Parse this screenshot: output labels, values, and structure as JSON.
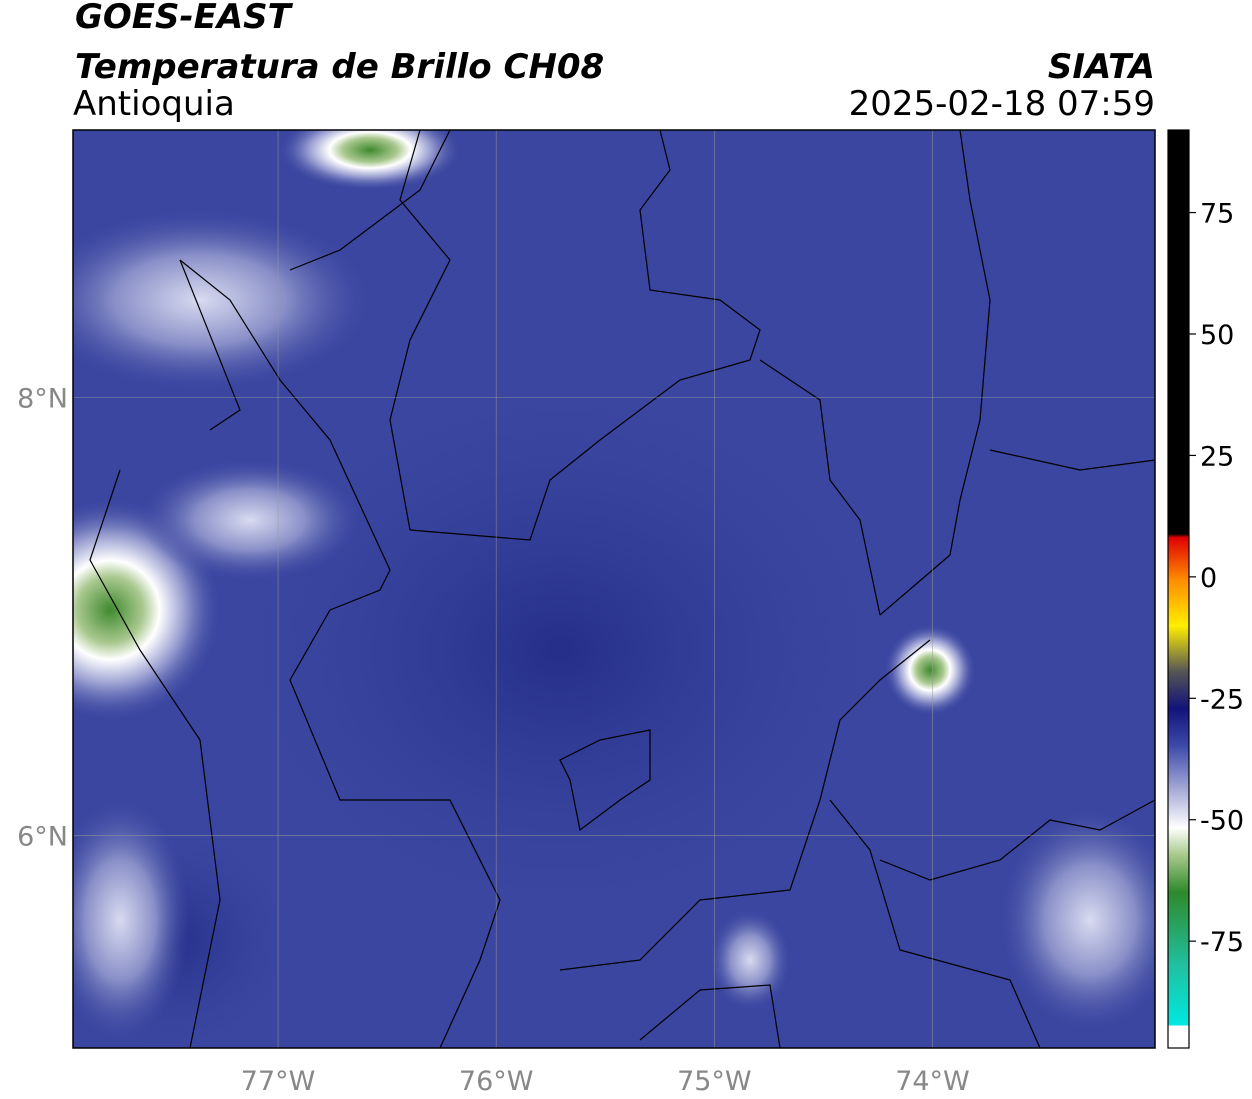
{
  "header": {
    "title": "GOES-EAST",
    "subtitle": "Temperatura de Brillo CH08",
    "region": "Antioquia",
    "source": "SIATA",
    "datetime": "2025-02-18 07:59"
  },
  "map": {
    "xlim": [
      -77.94,
      -72.98
    ],
    "ylim": [
      5.03,
      9.22
    ],
    "xticks": [
      {
        "value": -77,
        "label": "77°W"
      },
      {
        "value": -76,
        "label": "76°W"
      },
      {
        "value": -75,
        "label": "75°W"
      },
      {
        "value": -74,
        "label": "74°W"
      }
    ],
    "yticks": [
      {
        "value": 8,
        "label": "8°N"
      },
      {
        "value": 6,
        "label": "6°N"
      }
    ],
    "grid": true
  },
  "colorbar": {
    "lim": [
      -97,
      92
    ],
    "ticks": [
      75,
      50,
      25,
      0,
      -25,
      -50,
      -75
    ]
  }
}
